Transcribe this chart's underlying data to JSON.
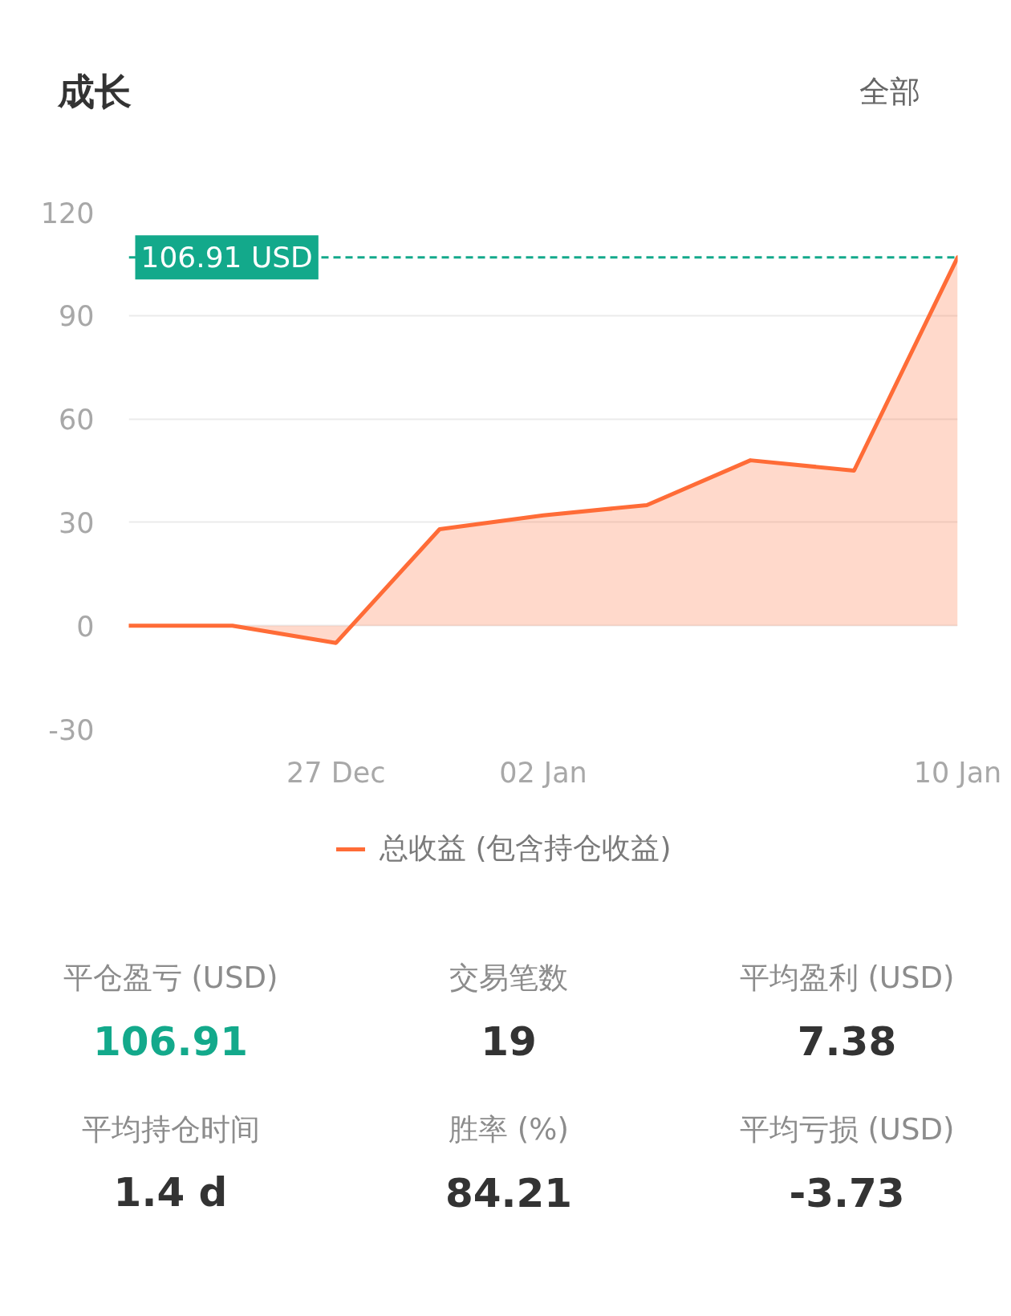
{
  "chart_data": [
    {
      "type": "area",
      "title": "成长",
      "annotations": [
        "全部"
      ],
      "categories": [
        null,
        null,
        "27 Dec",
        null,
        "02 Jan",
        null,
        null,
        null,
        "10 Jan"
      ],
      "series": [
        {
          "name": "总收益 (包含持仓收益)",
          "color": "#ff6c37",
          "values": [
            0,
            0,
            -5,
            28,
            32,
            35,
            48,
            45,
            106.91
          ]
        }
      ],
      "ylim": [
        -30,
        120
      ],
      "yticks": [
        -30,
        0,
        30,
        60,
        90,
        120
      ],
      "grid": "y",
      "legend": "bottom",
      "ref_lines": [
        {
          "axis": "y",
          "value": 106.91,
          "label": "106.91 USD",
          "color": "#13a98b",
          "line_style": "dashed"
        }
      ]
    },
    {
      "type": "other",
      "categories": [
        "平仓盈亏 (USD)",
        "交易笔数",
        "平均盈利 (USD)",
        "平均持仓时间",
        "胜率 (%)",
        "平均亏损 (USD)"
      ],
      "value_labels": [
        "106.91",
        "19",
        "7.38",
        "1.4 d",
        "84.21",
        "-3.73"
      ]
    }
  ]
}
